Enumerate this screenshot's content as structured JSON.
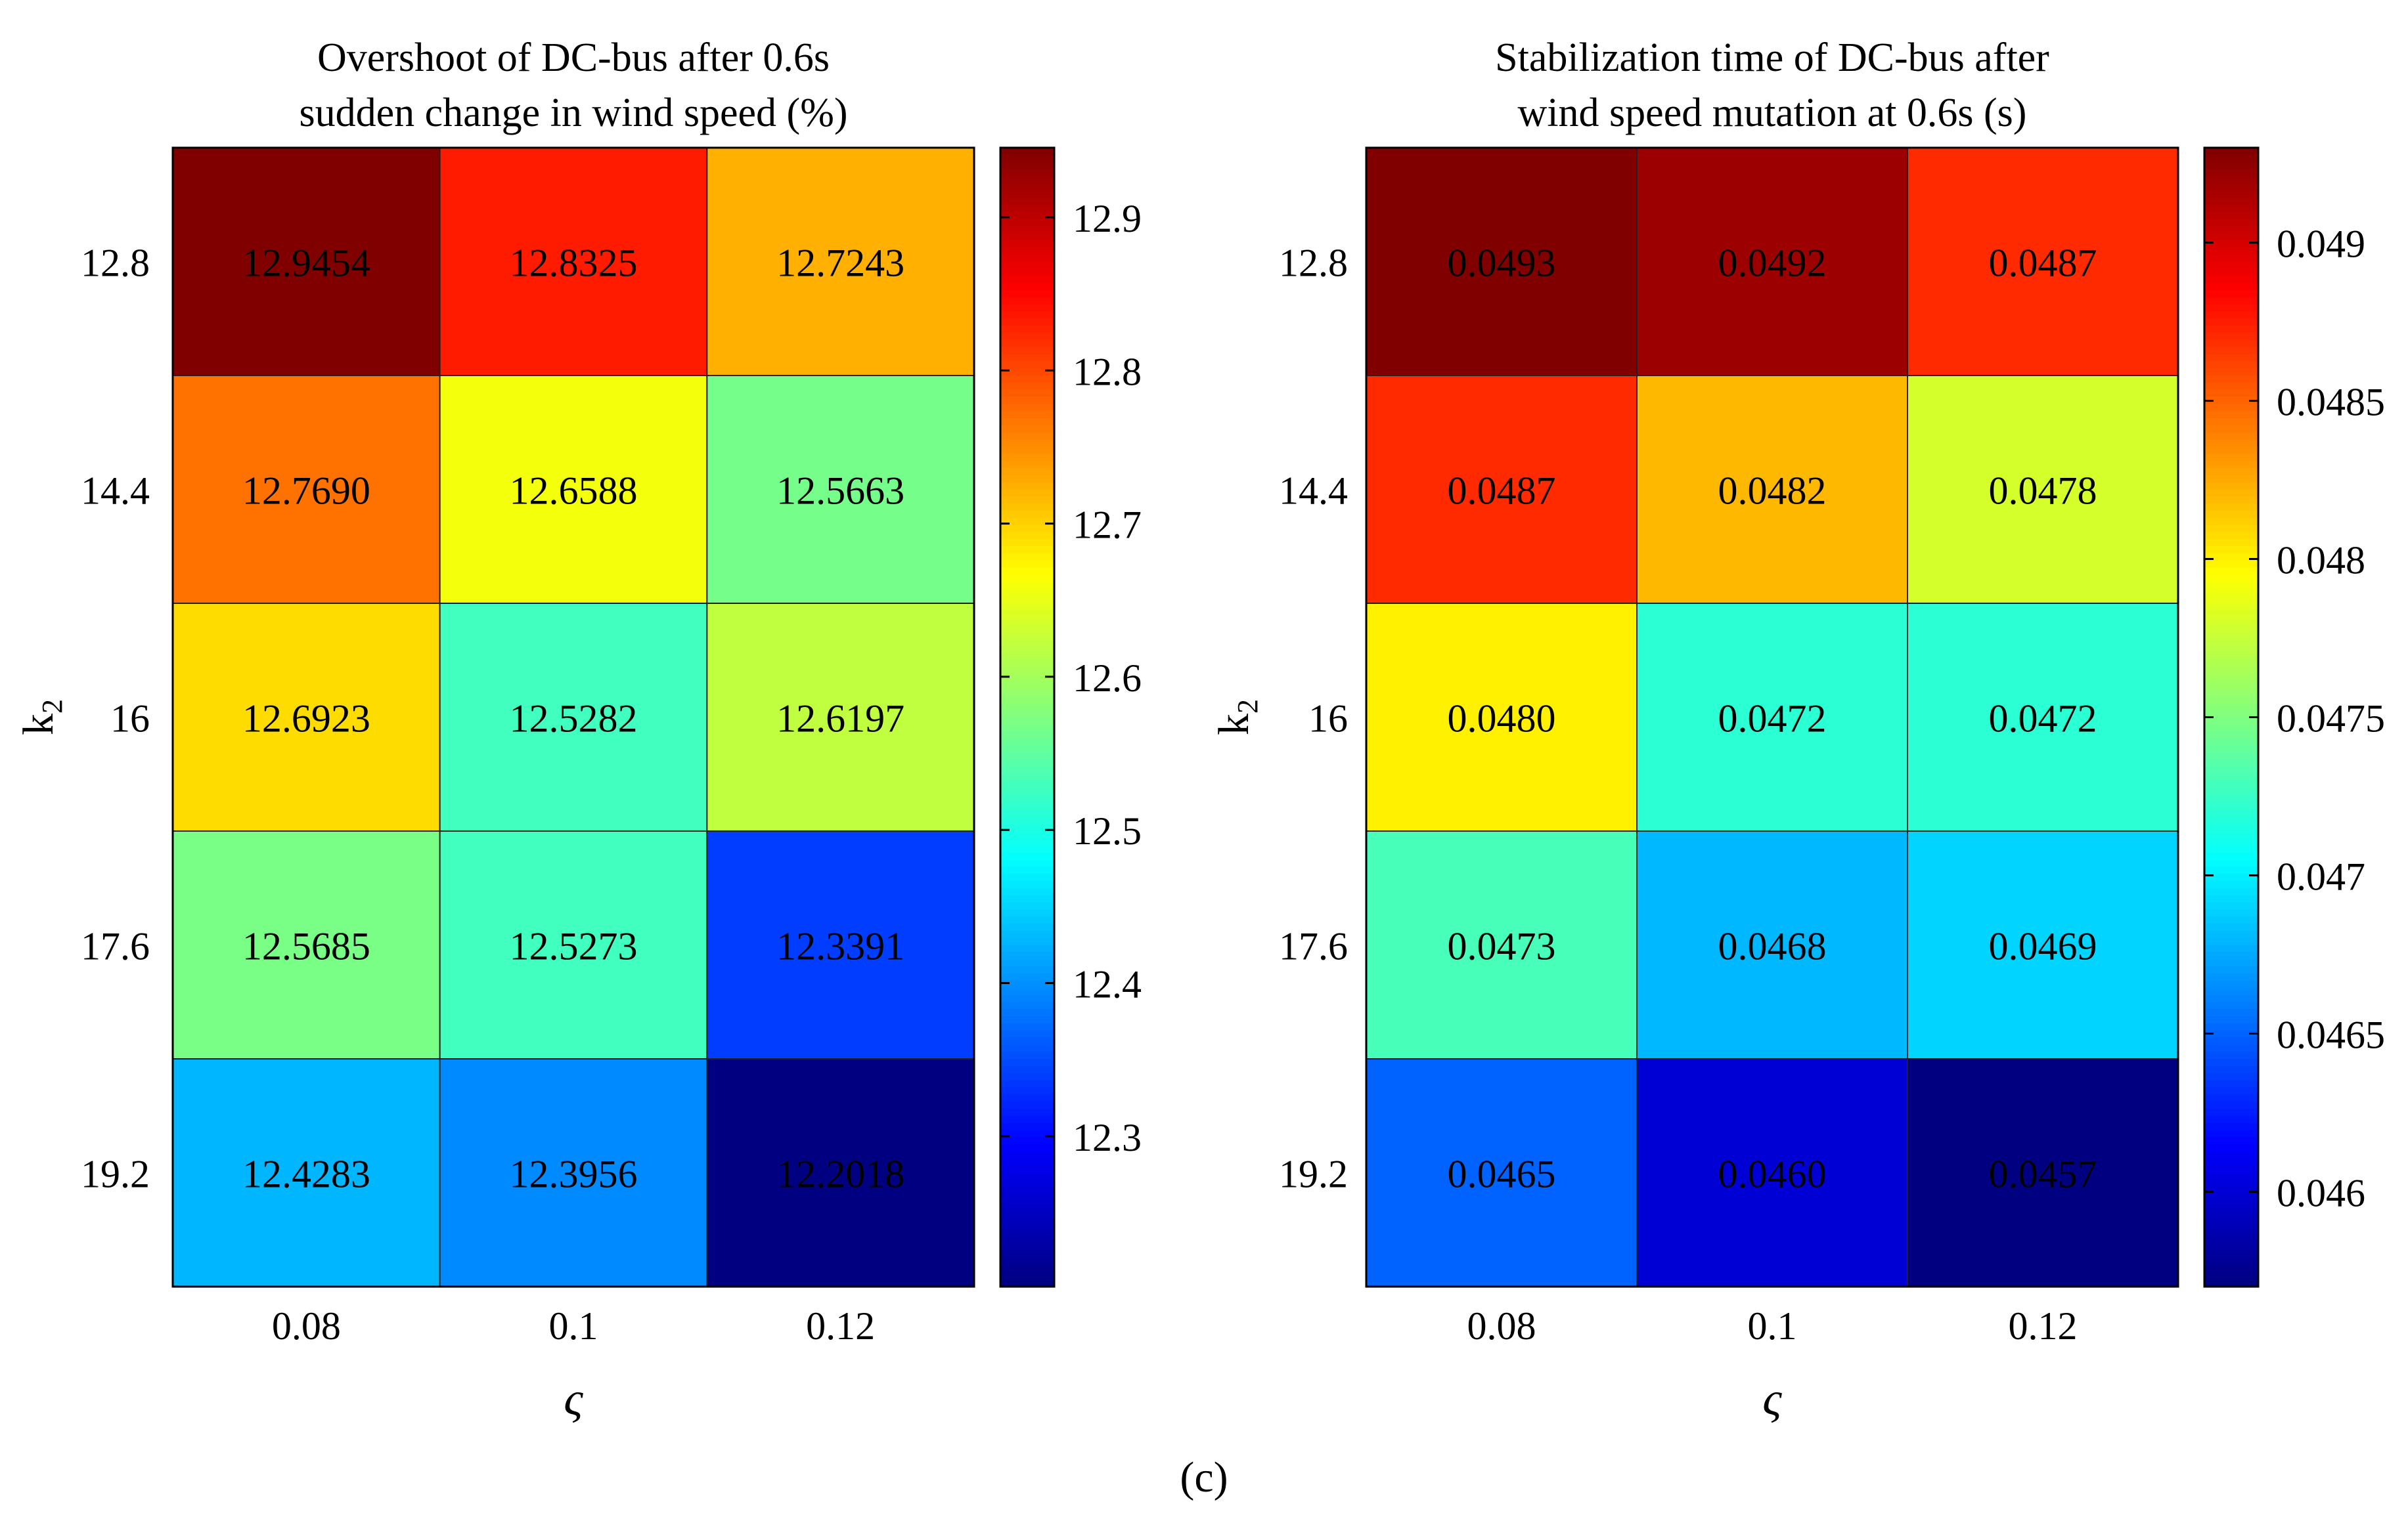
{
  "panel_label": "(c)",
  "chart_data": [
    {
      "type": "heatmap",
      "title_lines": [
        "Overshoot of DC-bus after 0.6s",
        "sudden change in wind speed (%)"
      ],
      "xlabel": "ς",
      "ylabel": "k",
      "ylabel_sub": "2",
      "x_categories": [
        "0.08",
        "0.1",
        "0.12"
      ],
      "y_categories": [
        "12.8",
        "14.4",
        "16",
        "17.6",
        "19.2"
      ],
      "values": [
        [
          12.9454,
          12.8325,
          12.7243
        ],
        [
          12.769,
          12.6588,
          12.5663
        ],
        [
          12.6923,
          12.5282,
          12.6197
        ],
        [
          12.5685,
          12.5273,
          12.3391
        ],
        [
          12.4283,
          12.3956,
          12.2018
        ]
      ],
      "cell_labels": [
        [
          "12.9454",
          "12.8325",
          "12.7243"
        ],
        [
          "12.7690",
          "12.6588",
          "12.5663"
        ],
        [
          "12.6923",
          "12.5282",
          "12.6197"
        ],
        [
          "12.5685",
          "12.5273",
          "12.3391"
        ],
        [
          "12.4283",
          "12.3956",
          "12.2018"
        ]
      ],
      "colorbar": {
        "range": [
          12.2018,
          12.9454
        ],
        "ticks": [
          12.3,
          12.4,
          12.5,
          12.6,
          12.7,
          12.8,
          12.9
        ],
        "tick_labels": [
          "12.3",
          "12.4",
          "12.5",
          "12.6",
          "12.7",
          "12.8",
          "12.9"
        ]
      },
      "colormap": "jet"
    },
    {
      "type": "heatmap",
      "title_lines": [
        "Stabilization time of DC-bus after",
        "wind speed mutation at 0.6s (s)"
      ],
      "xlabel": "ς",
      "ylabel": "k",
      "ylabel_sub": "2",
      "x_categories": [
        "0.08",
        "0.1",
        "0.12"
      ],
      "y_categories": [
        "12.8",
        "14.4",
        "16",
        "17.6",
        "19.2"
      ],
      "values": [
        [
          0.0493,
          0.0492,
          0.0487
        ],
        [
          0.0487,
          0.0482,
          0.0478
        ],
        [
          0.048,
          0.0472,
          0.0472
        ],
        [
          0.0473,
          0.0468,
          0.0469
        ],
        [
          0.0465,
          0.046,
          0.0457
        ]
      ],
      "cell_labels": [
        [
          "0.0493",
          "0.0492",
          "0.0487"
        ],
        [
          "0.0487",
          "0.0482",
          "0.0478"
        ],
        [
          "0.0480",
          "0.0472",
          "0.0472"
        ],
        [
          "0.0473",
          "0.0468",
          "0.0469"
        ],
        [
          "0.0465",
          "0.0460",
          "0.0457"
        ]
      ],
      "colorbar": {
        "range": [
          0.0457,
          0.0493
        ],
        "ticks": [
          0.046,
          0.0465,
          0.047,
          0.0475,
          0.048,
          0.0485,
          0.049
        ],
        "tick_labels": [
          "0.046",
          "0.0465",
          "0.047",
          "0.0475",
          "0.048",
          "0.0485",
          "0.049"
        ]
      },
      "colormap": "jet"
    }
  ]
}
